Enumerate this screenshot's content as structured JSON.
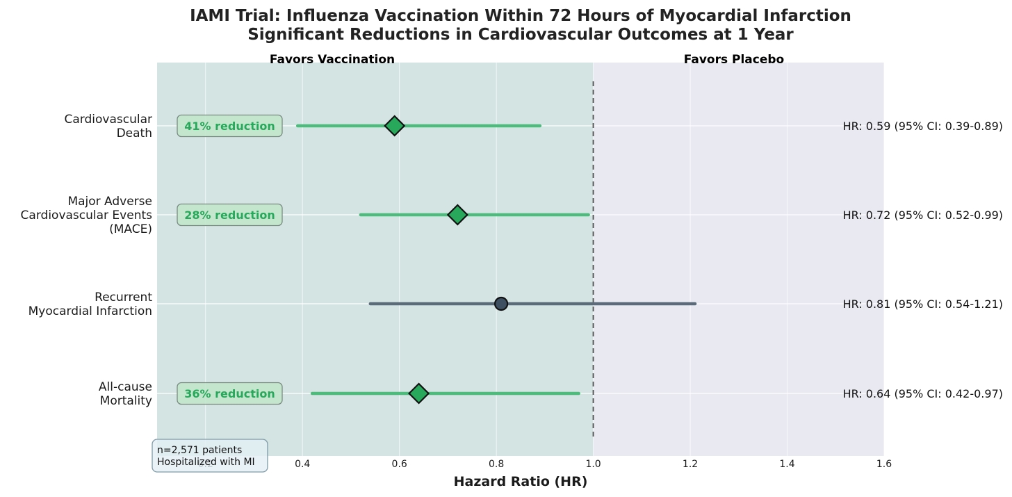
{
  "chart_data": {
    "type": "forest",
    "title_lines": [
      "IAMI Trial: Influenza Vaccination Within 72 Hours of Myocardial Infarction",
      "Significant Reductions in Cardiovascular Outcomes at 1 Year"
    ],
    "xlabel": "Hazard Ratio (HR)",
    "xlim": [
      0.1,
      1.6
    ],
    "xticks": [
      0.2,
      0.4,
      0.6,
      0.8,
      1.0,
      1.2,
      1.4,
      1.6
    ],
    "xtick_labels": [
      "0.2",
      "0.4",
      "0.6",
      "0.8",
      "1.0",
      "1.2",
      "1.4",
      "1.6"
    ],
    "reference_line": 1.0,
    "regions": {
      "left_label": "Favors Vaccination",
      "right_label": "Favors Placebo"
    },
    "outcomes": [
      {
        "label_lines": [
          "Cardiovascular",
          "Death"
        ],
        "hr": 0.59,
        "ci_low": 0.39,
        "ci_high": 0.89,
        "hr_text": "HR: 0.59 (95% CI: 0.39-0.89)",
        "reduction": "41% reduction",
        "significant": true
      },
      {
        "label_lines": [
          "Major Adverse",
          "Cardiovascular Events",
          "(MACE)"
        ],
        "hr": 0.72,
        "ci_low": 0.52,
        "ci_high": 0.99,
        "hr_text": "HR: 0.72 (95% CI: 0.52-0.99)",
        "reduction": "28% reduction",
        "significant": true
      },
      {
        "label_lines": [
          "Recurrent",
          "Myocardial Infarction"
        ],
        "hr": 0.81,
        "ci_low": 0.54,
        "ci_high": 1.21,
        "hr_text": "HR: 0.81 (95% CI: 0.54-1.21)",
        "reduction": "",
        "significant": false
      },
      {
        "label_lines": [
          "All-cause",
          "Mortality"
        ],
        "hr": 0.64,
        "ci_low": 0.42,
        "ci_high": 0.97,
        "hr_text": "HR: 0.64 (95% CI: 0.42-0.97)",
        "reduction": "36% reduction",
        "significant": true
      }
    ],
    "note_lines": [
      "n=2,571 patients",
      "Hospitalized with MI"
    ],
    "grid": true
  },
  "colors": {
    "significant": "#27a85a",
    "significant_ci": "#4cbb7c",
    "nonsignificant": "#3d4f61",
    "nonsignificant_ci": "#5b6b7a",
    "favors_vaccination_region": "#d3e4e3",
    "favors_placebo_region": "#e9e9f2",
    "favors_vaccination_text": "#27a85a",
    "favors_placebo_text": "#2d3e50",
    "reduction_box_fill": "#bfe6c9",
    "note_box_fill": "#e3eff4"
  }
}
